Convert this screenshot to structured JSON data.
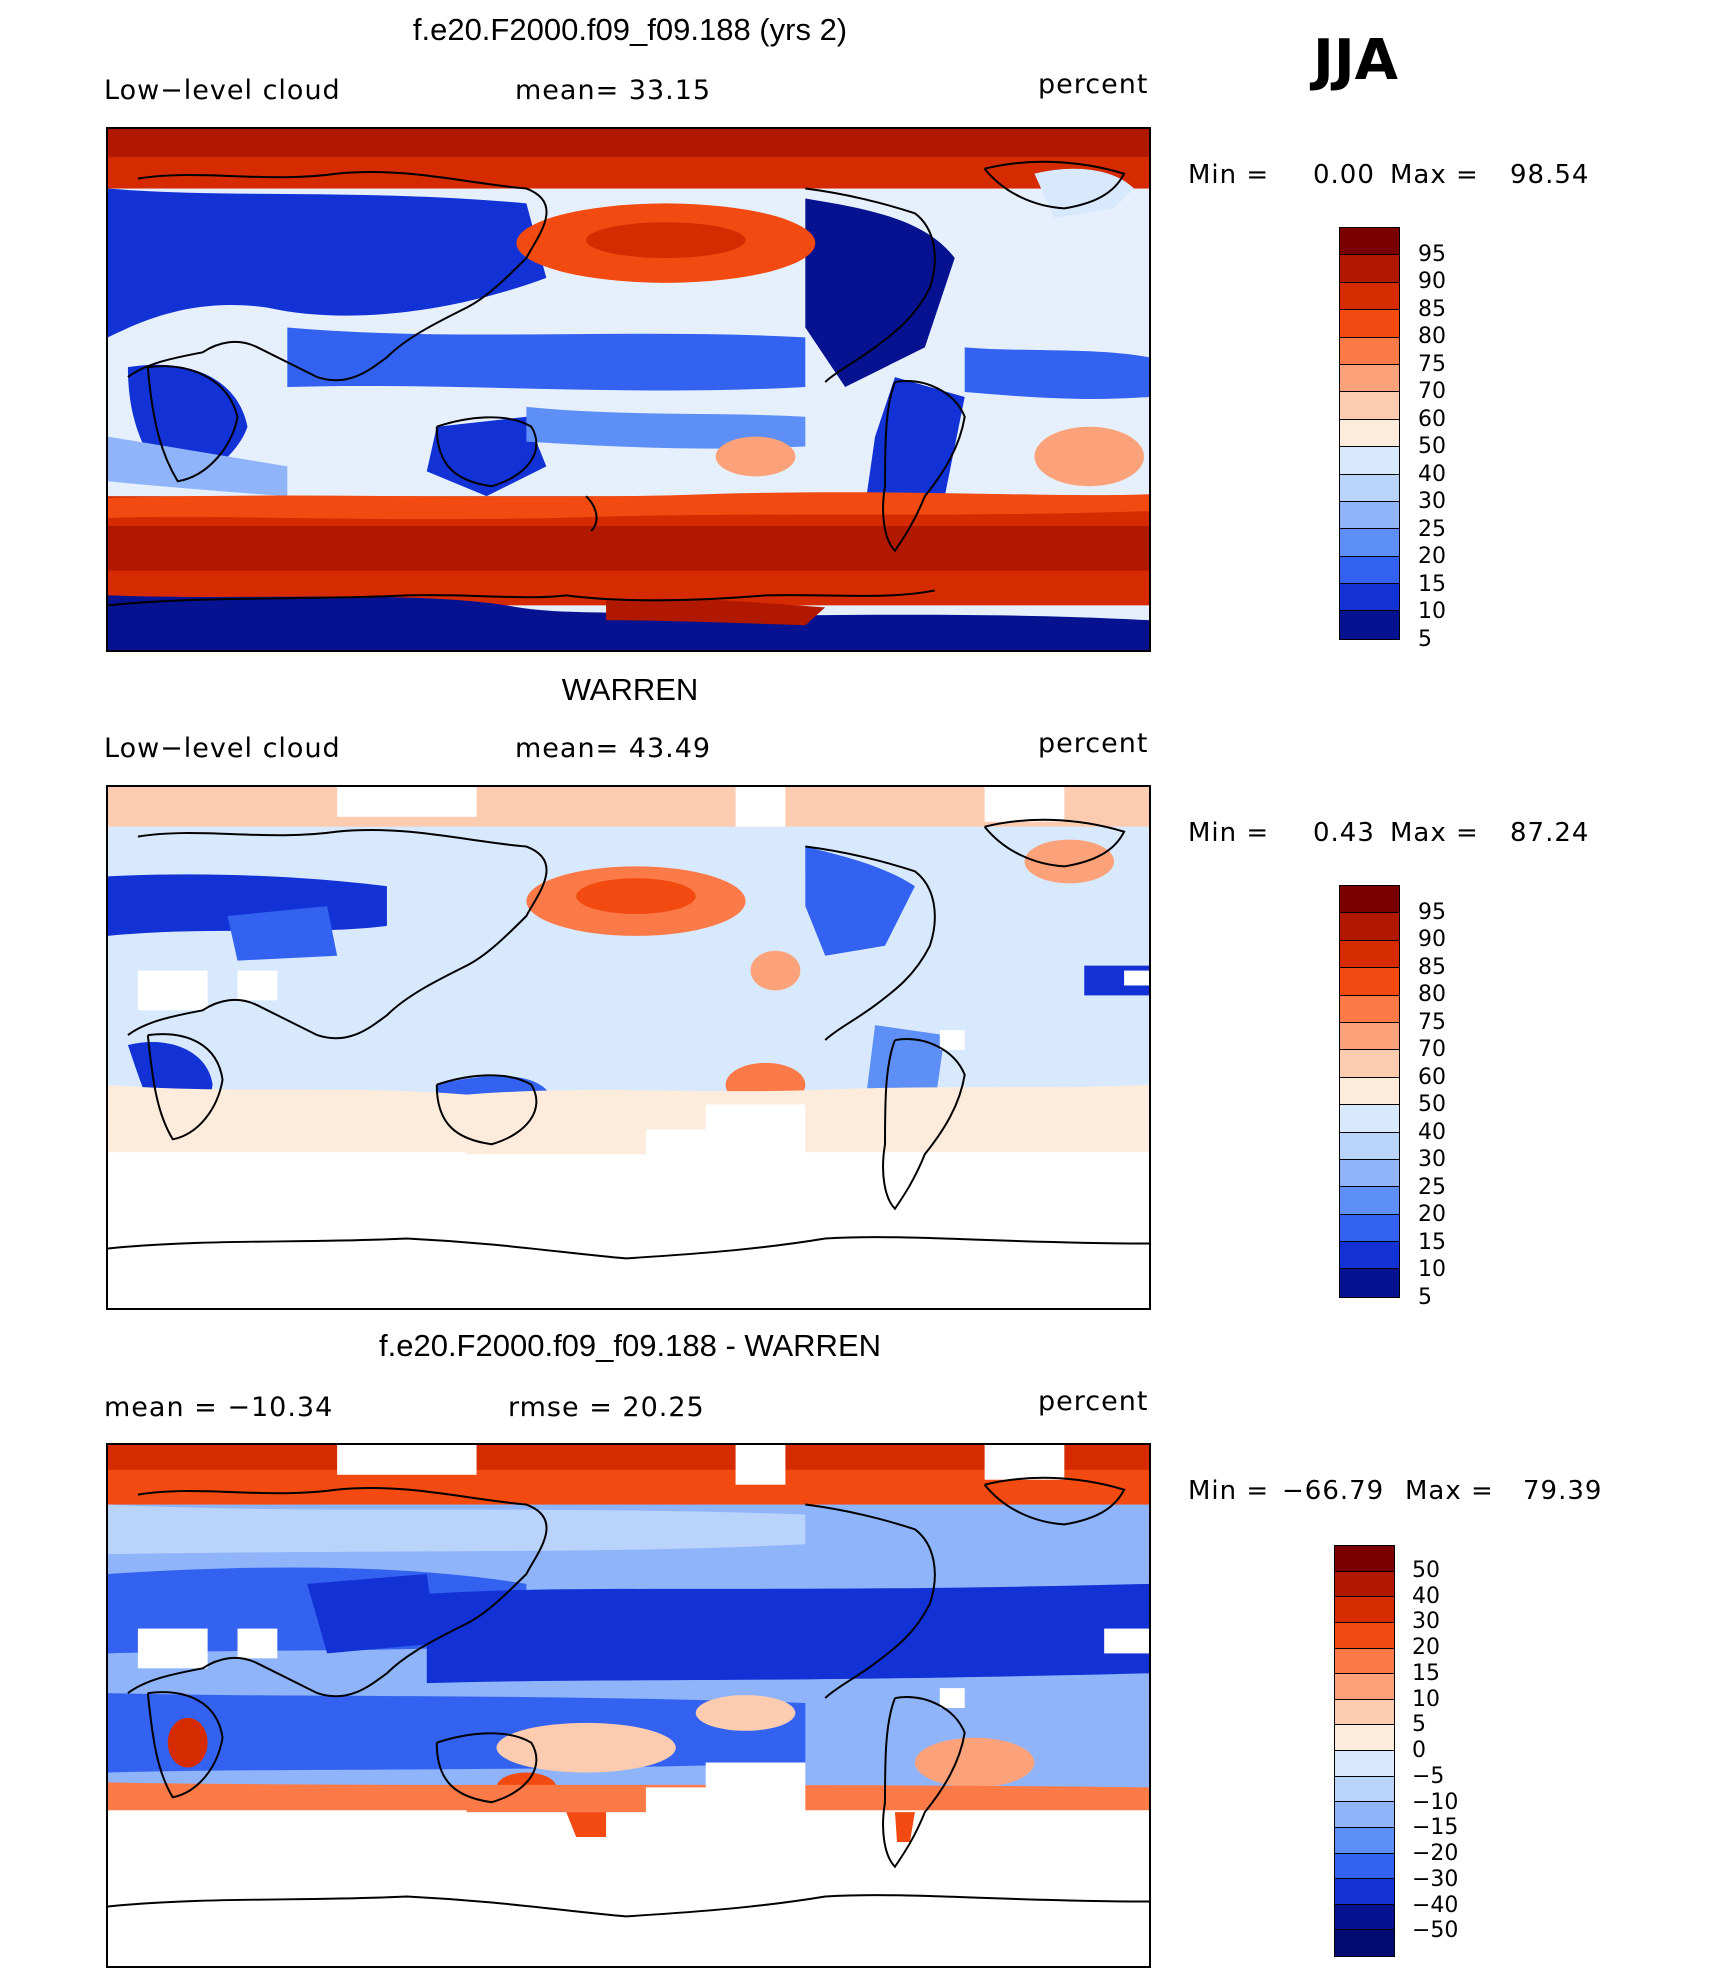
{
  "season": "JJA",
  "panels": [
    {
      "title": "f.e20.F2000.f09_f09.188 (yrs 2)",
      "left_label": "Low−level cloud",
      "middle_label": "mean=   33.15",
      "units": "percent",
      "min_label": "Min =",
      "min_value": "0.00",
      "max_label": "Max =",
      "max_value": "98.54",
      "colorbar": {
        "labels": [
          "95",
          "90",
          "85",
          "80",
          "75",
          "70",
          "60",
          "50",
          "40",
          "30",
          "25",
          "20",
          "15",
          "10",
          "5"
        ],
        "colors": [
          "#7a0000",
          "#b01800",
          "#d62a00",
          "#f24a10",
          "#fb7a48",
          "#fca27a",
          "#fdccb0",
          "#fdecdc",
          "#d8e9fd",
          "#b9d3fb",
          "#8fb4fa",
          "#5e8ff7",
          "#3362f0",
          "#1232d6",
          "#061290"
        ]
      }
    },
    {
      "title": "WARREN",
      "left_label": "Low−level cloud",
      "middle_label": "mean=   43.49",
      "units": "percent",
      "min_label": "Min =",
      "min_value": "0.43",
      "max_label": "Max =",
      "max_value": "87.24",
      "colorbar": {
        "labels": [
          "95",
          "90",
          "85",
          "80",
          "75",
          "70",
          "60",
          "50",
          "40",
          "30",
          "25",
          "20",
          "15",
          "10",
          "5"
        ],
        "colors": [
          "#7a0000",
          "#b01800",
          "#d62a00",
          "#f24a10",
          "#fb7a48",
          "#fca27a",
          "#fdccb0",
          "#fdecdc",
          "#d8e9fd",
          "#b9d3fb",
          "#8fb4fa",
          "#5e8ff7",
          "#3362f0",
          "#1232d6",
          "#061290"
        ]
      }
    },
    {
      "title": "f.e20.F2000.f09_f09.188 - WARREN",
      "left_label": "mean =  −10.34",
      "middle_label": "rmse =   20.25",
      "units": "percent",
      "min_label": "Min =",
      "min_value": "−66.79",
      "max_label": "Max =",
      "max_value": "79.39",
      "colorbar": {
        "labels": [
          "50",
          "40",
          "30",
          "20",
          "15",
          "10",
          "5",
          "0",
          "−5",
          "−10",
          "−15",
          "−20",
          "−30",
          "−40",
          "−50"
        ],
        "colors": [
          "#7a0000",
          "#b01800",
          "#d62a00",
          "#f24a10",
          "#fb7a48",
          "#fca27a",
          "#fdccb0",
          "#fdecdc",
          "#d8e9fd",
          "#b9d3fb",
          "#8fb4fa",
          "#5e8ff7",
          "#3362f0",
          "#1232d6",
          "#061290",
          "#000a70"
        ]
      }
    }
  ]
}
